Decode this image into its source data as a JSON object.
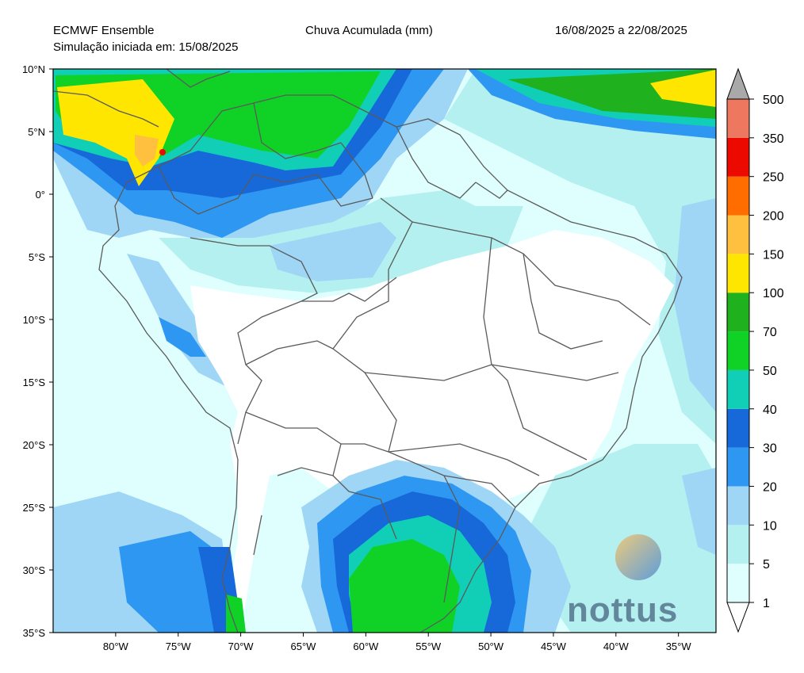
{
  "header": {
    "model": "ECMWF Ensemble",
    "init": "Simulação iniciada em: 15/08/2025",
    "title": "Chuva Acumulada (mm)",
    "period": "16/08/2025 a 22/08/2025"
  },
  "map": {
    "lat_range": [
      -35,
      10
    ],
    "lon_range": [
      -85,
      -32
    ],
    "lat_labels": [
      "10°N",
      "5°N",
      "0°",
      "5°S",
      "10°S",
      "15°S",
      "20°S",
      "25°S",
      "30°S",
      "35°S"
    ],
    "lon_labels": [
      "80°W",
      "75°W",
      "70°W",
      "65°W",
      "60°W",
      "55°W",
      "50°W",
      "45°W",
      "40°W",
      "35°W"
    ]
  },
  "colorbar": {
    "levels": [
      "1",
      "5",
      "10",
      "20",
      "30",
      "40",
      "50",
      "70",
      "100",
      "150",
      "200",
      "250",
      "350",
      "500"
    ],
    "colors": [
      "#dfffff",
      "#b3f0ef",
      "#9fd6f6",
      "#2e97f2",
      "#1768d9",
      "#11cfb7",
      "#10d226",
      "#1fb21e",
      "#ffe600",
      "#ffc040",
      "#ff6c00",
      "#ec0a00",
      "#ee7760",
      "#a9a9a9"
    ]
  },
  "logo": {
    "text": "nottus"
  }
}
